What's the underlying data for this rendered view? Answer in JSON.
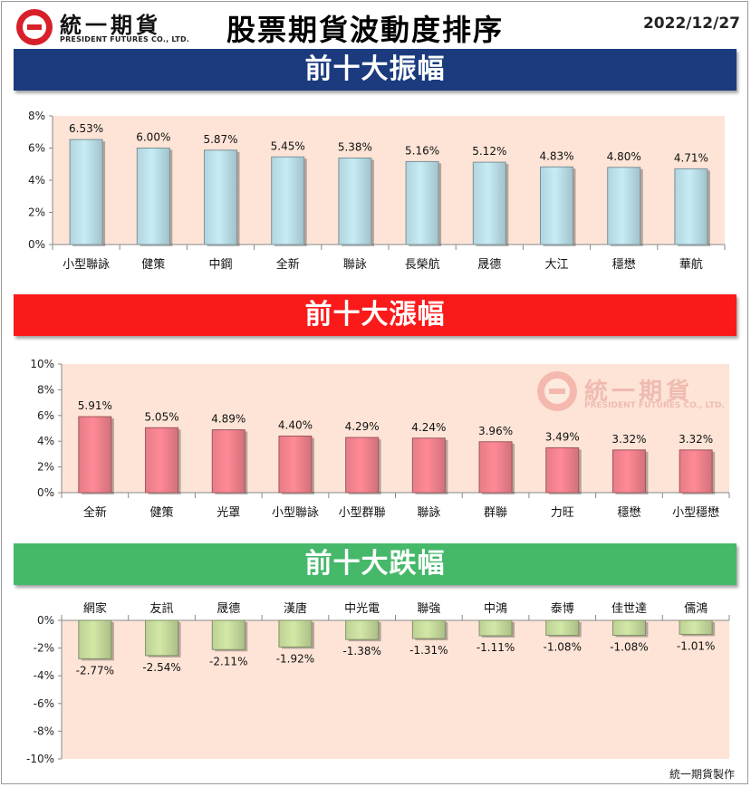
{
  "header": {
    "brand_name": "統一期貨",
    "brand_en": "PRESIDENT FUTURES CO., LTD.",
    "title": "股票期貨波動度排序",
    "date": "2022/12/27"
  },
  "colors": {
    "amplitude_banner": "#1b3b7e",
    "gain_banner": "#fb1a1a",
    "loss_banner": "#46b86a",
    "plot_background": "#fde4d6",
    "amplitude_bar": "#c6ecf6",
    "gain_bar": "#ff8a96",
    "loss_bar": "#d2e8a6"
  },
  "footer": {
    "credit": "統一期貨製作"
  },
  "watermark": {
    "brand_name": "統一期貨",
    "brand_en": "PRESIDENT FUTURES CO., LTD."
  },
  "chart_data": [
    {
      "id": "amplitude",
      "banner": "前十大振幅",
      "type": "bar",
      "categories": [
        "小型聯詠",
        "健策",
        "中鋼",
        "全新",
        "聯詠",
        "長榮航",
        "晟德",
        "大江",
        "穩懋",
        "華航"
      ],
      "values": [
        6.53,
        6.0,
        5.87,
        5.45,
        5.38,
        5.16,
        5.12,
        4.83,
        4.8,
        4.71
      ],
      "data_labels": [
        "6.53%",
        "6.00%",
        "5.87%",
        "5.45%",
        "5.38%",
        "5.16%",
        "5.12%",
        "4.83%",
        "4.80%",
        "4.71%"
      ],
      "yticks": [
        "0%",
        "2%",
        "4%",
        "6%",
        "8%"
      ],
      "ylim": [
        0,
        8
      ],
      "category_axis": "bottom"
    },
    {
      "id": "gain",
      "banner": "前十大漲幅",
      "type": "bar",
      "categories": [
        "全新",
        "健策",
        "光罩",
        "小型聯詠",
        "小型群聯",
        "聯詠",
        "群聯",
        "力旺",
        "穩懋",
        "小型穩懋"
      ],
      "values": [
        5.91,
        5.05,
        4.89,
        4.4,
        4.29,
        4.24,
        3.96,
        3.49,
        3.32,
        3.32
      ],
      "data_labels": [
        "5.91%",
        "5.05%",
        "4.89%",
        "4.40%",
        "4.29%",
        "4.24%",
        "3.96%",
        "3.49%",
        "3.32%",
        "3.32%"
      ],
      "yticks": [
        "0%",
        "2%",
        "4%",
        "6%",
        "8%",
        "10%"
      ],
      "ylim": [
        0,
        10
      ],
      "category_axis": "bottom"
    },
    {
      "id": "loss",
      "banner": "前十大跌幅",
      "type": "bar",
      "categories": [
        "網家",
        "友訊",
        "晟德",
        "漢唐",
        "中光電",
        "聯強",
        "中鴻",
        "泰博",
        "佳世達",
        "儒鴻"
      ],
      "values": [
        -2.77,
        -2.54,
        -2.11,
        -1.92,
        -1.38,
        -1.31,
        -1.11,
        -1.08,
        -1.08,
        -1.01
      ],
      "data_labels": [
        "-2.77%",
        "-2.54%",
        "-2.11%",
        "-1.92%",
        "-1.38%",
        "-1.31%",
        "-1.11%",
        "-1.08%",
        "-1.08%",
        "-1.01%"
      ],
      "yticks": [
        "0%",
        "-2%",
        "-4%",
        "-6%",
        "-8%",
        "-10%"
      ],
      "ylim": [
        -10,
        0
      ],
      "category_axis": "top"
    }
  ]
}
